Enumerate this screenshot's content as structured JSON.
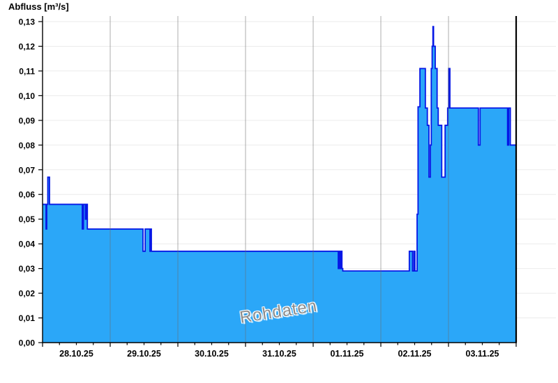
{
  "title": "Abfluss [m³/s]",
  "watermark": "Rohdaten",
  "colors": {
    "area_fill": "#2ba7f8",
    "step_line": "#0617e6",
    "h_grid": "#ebebeb",
    "v_grid": "#6b6b6b",
    "axis": "#000000",
    "end_marker": "#000000",
    "label_text": "#000000",
    "watermark_text": "#8c8c8c"
  },
  "chart_data": {
    "type": "area",
    "title": "Abfluss [m³/s]",
    "series_name": "Rohdaten",
    "ylabel": "Abfluss [m³/s]",
    "ylim": [
      0,
      0.13
    ],
    "y_tick_step": 0.01,
    "y_tick_labels": [
      "0,00",
      "0,01",
      "0,02",
      "0,03",
      "0,04",
      "0,05",
      "0,06",
      "0,07",
      "0,08",
      "0,09",
      "0,10",
      "0,11",
      "0,12",
      "0,13"
    ],
    "x_unit": "hours from 28.10.25 00:00",
    "xlim": [
      0,
      168
    ],
    "x_major_tick_every_hours": 24,
    "x_minor_tick_every_hours": 6,
    "day_labels": [
      "28.10.25",
      "29.10.25",
      "30.10.25",
      "31.10.25",
      "01.11.25",
      "02.11.25",
      "03.11.25"
    ],
    "day_label_center_hours": [
      12,
      36,
      60,
      84,
      108,
      132,
      156
    ],
    "grid": "on",
    "end_marker_hour": 168,
    "end_hour": 168,
    "steps": [
      [
        0.0,
        0.056
      ],
      [
        1.24,
        0.046
      ],
      [
        1.48,
        0.056
      ],
      [
        1.86,
        0.067
      ],
      [
        2.47,
        0.056
      ],
      [
        14.1,
        0.046
      ],
      [
        14.5,
        0.056
      ],
      [
        15.2,
        0.05
      ],
      [
        15.6,
        0.056
      ],
      [
        15.9,
        0.046
      ],
      [
        35.63,
        0.037
      ],
      [
        36.4,
        0.046
      ],
      [
        38.1,
        0.037
      ],
      [
        38.35,
        0.046
      ],
      [
        38.6,
        0.037
      ],
      [
        104.9,
        0.03
      ],
      [
        105.3,
        0.037
      ],
      [
        105.6,
        0.03
      ],
      [
        105.9,
        0.037
      ],
      [
        106.2,
        0.03
      ],
      [
        106.5,
        0.029
      ],
      [
        130.1,
        0.037
      ],
      [
        131.25,
        0.029
      ],
      [
        131.74,
        0.037
      ],
      [
        132.1,
        0.029
      ],
      [
        132.86,
        0.052
      ],
      [
        133.2,
        0.0955
      ],
      [
        133.86,
        0.111
      ],
      [
        135.8,
        0.095
      ],
      [
        136.5,
        0.088
      ],
      [
        137.07,
        0.067
      ],
      [
        137.57,
        0.08
      ],
      [
        137.89,
        0.111
      ],
      [
        138.2,
        0.12
      ],
      [
        138.48,
        0.128
      ],
      [
        138.7,
        0.12
      ],
      [
        139.3,
        0.111
      ],
      [
        139.96,
        0.095
      ],
      [
        140.36,
        0.088
      ],
      [
        141.6,
        0.067
      ],
      [
        142.8,
        0.088
      ],
      [
        143.7,
        0.095
      ],
      [
        144.06,
        0.111
      ],
      [
        144.5,
        0.095
      ],
      [
        154.6,
        0.08
      ],
      [
        155.2,
        0.095
      ],
      [
        164.95,
        0.08
      ],
      [
        165.35,
        0.095
      ],
      [
        165.94,
        0.08
      ]
    ]
  }
}
